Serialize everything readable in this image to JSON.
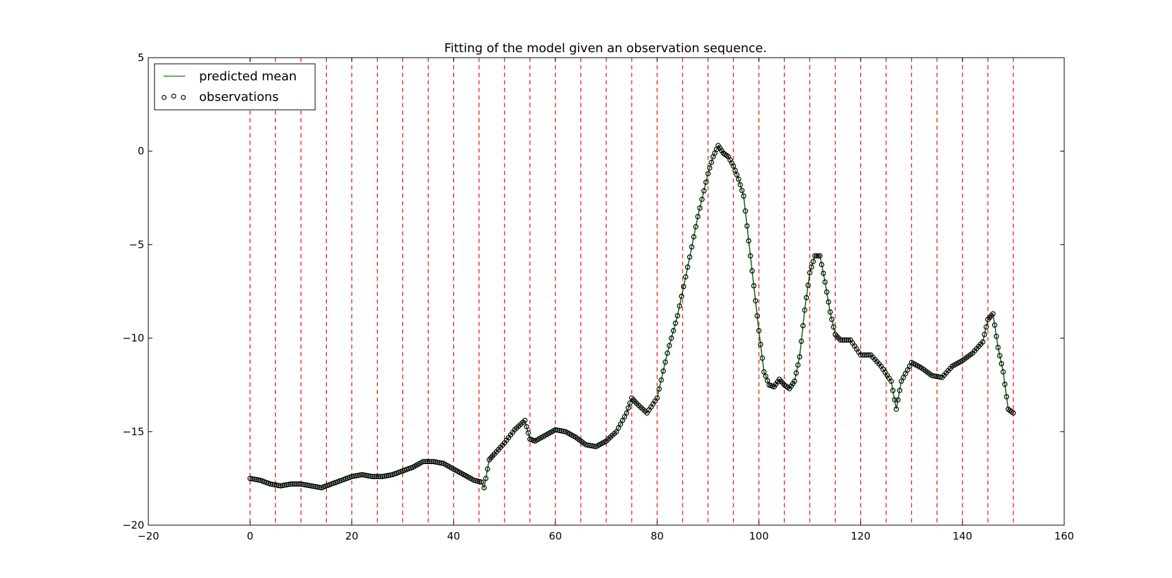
{
  "chart_data": {
    "type": "line",
    "title": "Fitting of the model given an observation sequence.",
    "xlabel": "",
    "ylabel": "",
    "xlim": [
      -20,
      160
    ],
    "ylim": [
      -20,
      5
    ],
    "xticks": [
      -20,
      0,
      20,
      40,
      60,
      80,
      100,
      120,
      140,
      160
    ],
    "yticks": [
      5,
      0,
      -5,
      -10,
      -15,
      -20
    ],
    "xtick_labels": [
      "−20",
      "0",
      "20",
      "40",
      "60",
      "80",
      "100",
      "120",
      "140",
      "160"
    ],
    "ytick_labels": [
      "5",
      "0",
      "−5",
      "−10",
      "−15",
      "−20"
    ],
    "grid": false,
    "legend_position": "top-left",
    "vertical_lines": {
      "x": [
        0,
        5,
        10,
        15,
        20,
        25,
        30,
        35,
        40,
        45,
        50,
        55,
        60,
        65,
        70,
        75,
        80,
        85,
        90,
        95,
        100,
        105,
        110,
        115,
        120,
        125,
        130,
        135,
        140,
        145,
        150
      ],
      "color": "#ff0000",
      "style": "dashed"
    },
    "series": [
      {
        "name": "predicted mean",
        "color": "#008000",
        "style": "line",
        "x": [
          0,
          2,
          4,
          6,
          8,
          10,
          12,
          14,
          16,
          18,
          20,
          22,
          24,
          26,
          28,
          30,
          32,
          34,
          36,
          38,
          40,
          42,
          44,
          45.5,
          46,
          47,
          48,
          50,
          52,
          54,
          55,
          56,
          58,
          60,
          62,
          64,
          66,
          68,
          70,
          72,
          74,
          75,
          76,
          78,
          80,
          82,
          84,
          86,
          88,
          90,
          91,
          92,
          93,
          94,
          95,
          96,
          97,
          98,
          99,
          100,
          101,
          102,
          103,
          104,
          105,
          106,
          107,
          108,
          109,
          110,
          111,
          112,
          113,
          114,
          115,
          116,
          118,
          120,
          122,
          124,
          126,
          127,
          128,
          130,
          132,
          134,
          136,
          138,
          140,
          142,
          144,
          145,
          146,
          147,
          148,
          149,
          150
        ],
        "y": [
          -17.5,
          -17.6,
          -17.8,
          -17.9,
          -17.8,
          -17.8,
          -17.9,
          -18.0,
          -17.8,
          -17.6,
          -17.4,
          -17.3,
          -17.4,
          -17.4,
          -17.3,
          -17.1,
          -16.9,
          -16.6,
          -16.6,
          -16.7,
          -17.0,
          -17.3,
          -17.6,
          -17.7,
          -18.0,
          -16.5,
          -16.2,
          -15.6,
          -14.9,
          -14.4,
          -15.4,
          -15.5,
          -15.2,
          -14.9,
          -15.0,
          -15.3,
          -15.7,
          -15.8,
          -15.5,
          -15.0,
          -14.0,
          -13.2,
          -13.5,
          -14.0,
          -13.2,
          -10.8,
          -8.8,
          -6.2,
          -3.5,
          -1.2,
          -0.3,
          0.3,
          -0.1,
          -0.3,
          -0.8,
          -1.5,
          -2.4,
          -4.8,
          -7.2,
          -9.6,
          -11.8,
          -12.5,
          -12.6,
          -12.2,
          -12.5,
          -12.7,
          -12.3,
          -11.0,
          -8.5,
          -6.5,
          -5.6,
          -5.6,
          -7.0,
          -8.6,
          -9.8,
          -10.1,
          -10.1,
          -10.9,
          -10.9,
          -11.5,
          -12.3,
          -13.8,
          -12.3,
          -11.3,
          -11.6,
          -12.0,
          -12.1,
          -11.5,
          -11.2,
          -10.8,
          -10.2,
          -9.0,
          -8.7,
          -10.5,
          -11.8,
          -13.8,
          -14.0
        ]
      },
      {
        "name": "observations",
        "color": "#000000",
        "style": "markers",
        "x": [
          0,
          2,
          4,
          6,
          8,
          10,
          12,
          14,
          16,
          18,
          20,
          22,
          24,
          26,
          28,
          30,
          32,
          34,
          36,
          38,
          40,
          42,
          44,
          45.5,
          46,
          47,
          48,
          50,
          52,
          54,
          55,
          56,
          58,
          60,
          62,
          64,
          66,
          68,
          70,
          72,
          74,
          75,
          76,
          78,
          80,
          82,
          84,
          86,
          88,
          90,
          91,
          92,
          93,
          94,
          95,
          96,
          97,
          98,
          99,
          100,
          101,
          102,
          103,
          104,
          105,
          106,
          107,
          108,
          109,
          110,
          111,
          112,
          113,
          114,
          115,
          116,
          118,
          120,
          122,
          124,
          126,
          127,
          128,
          130,
          132,
          134,
          136,
          138,
          140,
          142,
          144,
          145,
          146,
          147,
          148,
          149,
          150
        ],
        "y": [
          -17.5,
          -17.6,
          -17.8,
          -17.9,
          -17.8,
          -17.8,
          -17.9,
          -18.0,
          -17.8,
          -17.6,
          -17.4,
          -17.3,
          -17.4,
          -17.4,
          -17.3,
          -17.1,
          -16.9,
          -16.6,
          -16.6,
          -16.7,
          -17.0,
          -17.3,
          -17.6,
          -17.7,
          -18.0,
          -16.5,
          -16.2,
          -15.6,
          -14.9,
          -14.4,
          -15.4,
          -15.5,
          -15.2,
          -14.9,
          -15.0,
          -15.3,
          -15.7,
          -15.8,
          -15.5,
          -15.0,
          -14.0,
          -13.2,
          -13.5,
          -14.0,
          -13.2,
          -10.8,
          -8.8,
          -6.2,
          -3.5,
          -1.2,
          -0.3,
          0.3,
          -0.1,
          -0.3,
          -0.8,
          -1.5,
          -2.4,
          -4.8,
          -7.2,
          -9.6,
          -11.8,
          -12.5,
          -12.6,
          -12.2,
          -12.5,
          -12.7,
          -12.3,
          -11.0,
          -8.5,
          -6.5,
          -5.6,
          -5.6,
          -7.0,
          -8.6,
          -9.8,
          -10.1,
          -10.1,
          -10.9,
          -10.9,
          -11.5,
          -12.3,
          -13.8,
          -12.3,
          -11.3,
          -11.6,
          -12.0,
          -12.1,
          -11.5,
          -11.2,
          -10.8,
          -10.2,
          -9.0,
          -8.7,
          -10.5,
          -11.8,
          -13.8,
          -14.0
        ]
      }
    ]
  }
}
